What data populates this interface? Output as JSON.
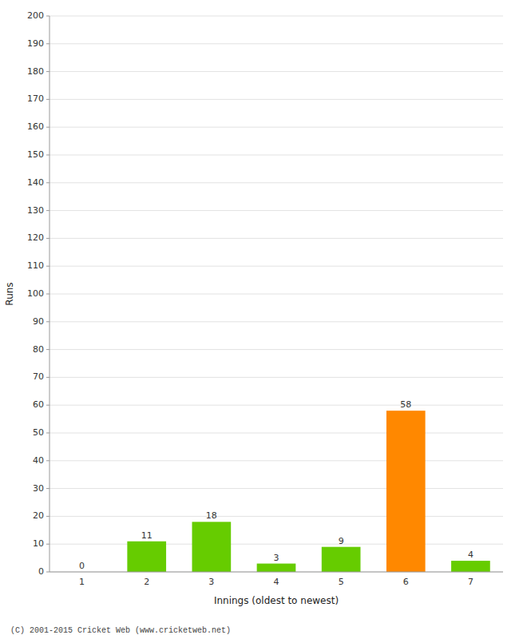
{
  "chart_data": {
    "type": "bar",
    "categories": [
      "1",
      "2",
      "3",
      "4",
      "5",
      "6",
      "7"
    ],
    "values": [
      0,
      11,
      18,
      3,
      9,
      58,
      4
    ],
    "colors": [
      "#66cc00",
      "#66cc00",
      "#66cc00",
      "#66cc00",
      "#66cc00",
      "#ff8800",
      "#66cc00"
    ],
    "xlabel": "Innings (oldest to newest)",
    "ylabel": "Runs",
    "ylim": [
      0,
      200
    ],
    "yticks": [
      0,
      10,
      20,
      30,
      40,
      50,
      60,
      70,
      80,
      90,
      100,
      110,
      120,
      130,
      140,
      150,
      160,
      170,
      180,
      190,
      200
    ],
    "grid": true,
    "data_labels": true,
    "annotations": [
      "(C) 2001-2015 Cricket Web (www.cricketweb.net)"
    ]
  }
}
